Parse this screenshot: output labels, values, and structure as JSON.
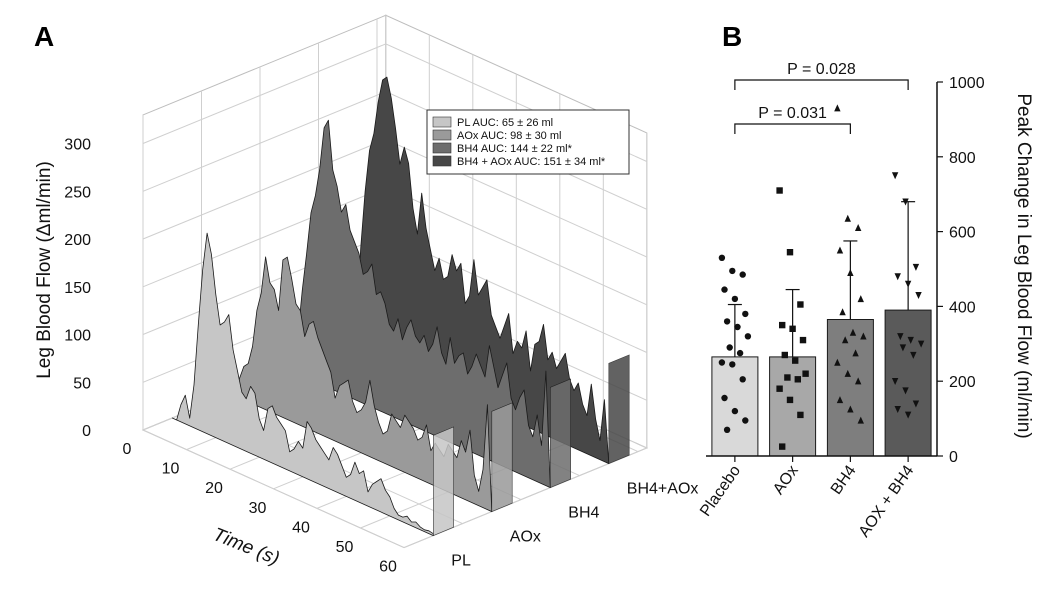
{
  "panel_a": {
    "letter": "A",
    "chart_data": {
      "type": "area",
      "subtype": "3d-stacked-waterfall",
      "xlabel": "Time (s)",
      "ylabel": "Leg Blood Flow (Δml/min)",
      "xlim": [
        0,
        60
      ],
      "ylim": [
        0,
        300
      ],
      "x_ticks": [
        {
          "v": 0,
          "label": "0"
        },
        {
          "v": 10,
          "label": "10"
        },
        {
          "v": 20,
          "label": "20"
        },
        {
          "v": 30,
          "label": "30"
        },
        {
          "v": 40,
          "label": "40"
        },
        {
          "v": 50,
          "label": "50"
        },
        {
          "v": 60,
          "label": "60"
        }
      ],
      "y_ticks": [
        {
          "v": 0,
          "label": "0"
        },
        {
          "v": 50,
          "label": "50"
        },
        {
          "v": 100,
          "label": "100"
        },
        {
          "v": 150,
          "label": "150"
        },
        {
          "v": 200,
          "label": "200"
        },
        {
          "v": 250,
          "label": "250"
        },
        {
          "v": 300,
          "label": "300"
        }
      ],
      "depth_labels": [
        "PL",
        "AOx",
        "BH4",
        "BH4+AOx"
      ],
      "legend_position": "top-right",
      "series": [
        {
          "name": "PL",
          "legend": "PL AUC: 65 ± 26 ml",
          "color": "#c6c6c6",
          "x": [
            0,
            1,
            2,
            3,
            4,
            5,
            6,
            7,
            8,
            9,
            10,
            11,
            12,
            13,
            14,
            15,
            16,
            17,
            18,
            19,
            20,
            21,
            22,
            23,
            24,
            25,
            26,
            27,
            28,
            29,
            30,
            31,
            32,
            33,
            34,
            35,
            36,
            37,
            38,
            39,
            40,
            41,
            42,
            43,
            44,
            45,
            46,
            47,
            48,
            49,
            50,
            51,
            52,
            53,
            54,
            55,
            56,
            57,
            58,
            59,
            60
          ],
          "values": [
            0,
            0,
            18,
            30,
            8,
            45,
            110,
            170,
            210,
            190,
            150,
            120,
            125,
            135,
            100,
            80,
            60,
            55,
            70,
            65,
            40,
            30,
            55,
            60,
            50,
            45,
            40,
            20,
            25,
            35,
            30,
            60,
            55,
            45,
            40,
            35,
            30,
            45,
            40,
            30,
            20,
            25,
            40,
            30,
            35,
            15,
            25,
            30,
            35,
            25,
            20,
            10,
            5,
            5,
            8,
            4,
            6,
            3,
            2,
            3,
            2
          ]
        },
        {
          "name": "AOx",
          "legend": "AOx AUC: 98 ± 30 ml",
          "color": "#9a9a9a",
          "x": [
            0,
            1,
            2,
            3,
            4,
            5,
            6,
            7,
            8,
            9,
            10,
            11,
            12,
            13,
            14,
            15,
            16,
            17,
            18,
            19,
            20,
            21,
            22,
            23,
            24,
            25,
            26,
            27,
            28,
            29,
            30,
            31,
            32,
            33,
            34,
            35,
            36,
            37,
            38,
            39,
            40,
            41,
            42,
            43,
            44,
            45,
            46,
            47,
            48,
            49,
            50,
            51,
            52,
            53,
            54,
            55,
            56,
            57,
            58,
            59,
            60
          ],
          "values": [
            0,
            0,
            20,
            35,
            40,
            60,
            100,
            120,
            160,
            135,
            130,
            110,
            165,
            170,
            150,
            125,
            120,
            95,
            110,
            115,
            100,
            90,
            80,
            70,
            45,
            60,
            65,
            70,
            50,
            40,
            45,
            55,
            80,
            55,
            40,
            30,
            35,
            55,
            50,
            45,
            60,
            55,
            50,
            40,
            45,
            60,
            35,
            45,
            40,
            35,
            50,
            45,
            40,
            60,
            50,
            75,
            30,
            15,
            40,
            110,
            0
          ]
        },
        {
          "name": "BH4",
          "legend": "BH4 AUC: 144 ± 22 ml*",
          "color": "#6d6d6d",
          "x": [
            0,
            1,
            2,
            3,
            4,
            5,
            6,
            7,
            8,
            9,
            10,
            11,
            12,
            13,
            14,
            15,
            16,
            17,
            18,
            19,
            20,
            21,
            22,
            23,
            24,
            25,
            26,
            27,
            28,
            29,
            30,
            31,
            32,
            33,
            34,
            35,
            36,
            37,
            38,
            39,
            40,
            41,
            42,
            43,
            44,
            45,
            46,
            47,
            48,
            49,
            50,
            51,
            52,
            53,
            54,
            55,
            56,
            57,
            58,
            59,
            60
          ],
          "values": [
            0,
            0,
            40,
            90,
            130,
            175,
            195,
            225,
            270,
            280,
            230,
            215,
            190,
            200,
            175,
            165,
            155,
            135,
            140,
            150,
            120,
            125,
            115,
            95,
            90,
            105,
            85,
            100,
            110,
            95,
            90,
            100,
            85,
            95,
            115,
            90,
            80,
            110,
            85,
            95,
            100,
            80,
            90,
            105,
            95,
            85,
            120,
            100,
            80,
            95,
            110,
            75,
            65,
            80,
            90,
            55,
            45,
            70,
            40,
            120,
            0
          ]
        },
        {
          "name": "BH4+AOx",
          "legend": "BH4 + AOx AUC: 151 ± 34 ml*",
          "color": "#474747",
          "x": [
            0,
            1,
            2,
            3,
            4,
            5,
            6,
            7,
            8,
            9,
            10,
            11,
            12,
            13,
            14,
            15,
            16,
            17,
            18,
            19,
            20,
            21,
            22,
            23,
            24,
            25,
            26,
            27,
            28,
            29,
            30,
            31,
            32,
            33,
            34,
            35,
            36,
            37,
            38,
            39,
            40,
            41,
            42,
            43,
            44,
            45,
            46,
            47,
            48,
            49,
            50,
            51,
            52,
            53,
            54,
            55,
            56,
            57,
            58,
            59,
            60
          ],
          "values": [
            0,
            0,
            30,
            110,
            170,
            215,
            235,
            270,
            295,
            300,
            280,
            250,
            215,
            235,
            220,
            175,
            150,
            195,
            160,
            140,
            120,
            135,
            115,
            120,
            145,
            130,
            140,
            100,
            110,
            150,
            115,
            125,
            135,
            100,
            90,
            80,
            95,
            110,
            70,
            85,
            80,
            100,
            60,
            90,
            95,
            115,
            80,
            90,
            75,
            85,
            95,
            70,
            60,
            70,
            50,
            40,
            75,
            40,
            20,
            65,
            0
          ]
        }
      ]
    }
  },
  "panel_b": {
    "letter": "B",
    "chart_data": {
      "type": "bar",
      "categories": [
        "Placebo",
        "AOx",
        "BH4",
        "AOX + BH4"
      ],
      "values": [
        265,
        265,
        365,
        390
      ],
      "error_upper": [
        405,
        445,
        575,
        680
      ],
      "colors": [
        "#d9d9d9",
        "#a8a8a8",
        "#7e7e7e",
        "#5a5a5a"
      ],
      "ylabel": "Peak Change in Leg Blood Flow  (ml/min)",
      "y_axis_position": "right",
      "ylim": [
        0,
        1000
      ],
      "y_ticks": [
        {
          "v": 0,
          "label": "0"
        },
        {
          "v": 200,
          "label": "200"
        },
        {
          "v": 400,
          "label": "400"
        },
        {
          "v": 600,
          "label": "600"
        },
        {
          "v": 800,
          "label": "800"
        },
        {
          "v": 1000,
          "label": "1000"
        }
      ],
      "points": [
        {
          "marker": "circle",
          "values": [
            530,
            495,
            485,
            445,
            420,
            380,
            360,
            345,
            320,
            290,
            275,
            250,
            245,
            205,
            155,
            120,
            95,
            70
          ]
        },
        {
          "marker": "square",
          "values": [
            710,
            545,
            405,
            350,
            340,
            310,
            270,
            255,
            220,
            210,
            205,
            180,
            150,
            110,
            25
          ]
        },
        {
          "marker": "triangle-up",
          "values": [
            930,
            635,
            610,
            550,
            490,
            420,
            385,
            330,
            320,
            310,
            275,
            250,
            220,
            200,
            150,
            125,
            95
          ]
        },
        {
          "marker": "triangle-down",
          "values": [
            750,
            680,
            505,
            480,
            460,
            430,
            320,
            310,
            300,
            290,
            270,
            200,
            175,
            140,
            125,
            110
          ]
        }
      ],
      "comparisons": [
        {
          "from": 0,
          "to": 3,
          "label": "P = 0.028"
        },
        {
          "from": 0,
          "to": 2,
          "label": "P = 0.031"
        }
      ]
    }
  }
}
